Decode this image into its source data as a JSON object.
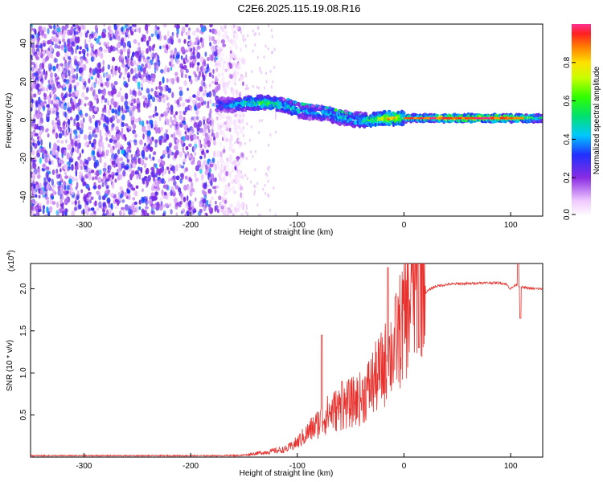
{
  "title": "C2E6.2025.115.19.08.R16",
  "chart_data": [
    {
      "type": "heatmap",
      "xlabel": "Height of straight line (km)",
      "ylabel": "Frequency (Hz)",
      "xlim": [
        -350,
        130
      ],
      "ylim": [
        -50,
        50
      ],
      "x_ticks": [
        -300,
        -200,
        -100,
        0,
        100
      ],
      "y_ticks": [
        -40,
        -20,
        0,
        20,
        40
      ],
      "colorbar": {
        "label": "Normalized spectral amplitude",
        "range": [
          0,
          1
        ],
        "ticks": [
          0.0,
          0.2,
          0.4,
          0.6,
          0.8
        ],
        "tick_labels": [
          "0.0",
          "0.2",
          "0.4",
          "0.6",
          "0.8"
        ]
      },
      "noise_region": {
        "x_range": [
          -350,
          -160
        ],
        "amplitude": 0.15
      },
      "signal_track": {
        "x": [
          -175,
          -160,
          -145,
          -130,
          -115,
          -100,
          -85,
          -70,
          -55,
          -42,
          -30,
          -15,
          0,
          15,
          40,
          70,
          100,
          130
        ],
        "frequency": [
          8,
          8,
          9,
          9,
          8,
          5,
          4,
          3,
          1,
          0,
          0,
          1,
          1,
          1,
          1,
          1,
          1,
          1
        ],
        "amplitude": [
          0.35,
          0.4,
          0.55,
          0.6,
          0.55,
          0.45,
          0.4,
          0.45,
          0.5,
          0.5,
          0.6,
          0.85,
          0.7,
          0.6,
          0.8,
          0.85,
          0.85,
          0.5
        ]
      }
    },
    {
      "type": "line",
      "xlabel": "Height of straight line (km)",
      "ylabel": "SNR (10 * v/v)",
      "y_scale_label": "(x10",
      "y_scale_exponent": "4",
      "y_scale_suffix": ")",
      "xlim": [
        -350,
        130
      ],
      "ylim": [
        0,
        2.3
      ],
      "x_ticks": [
        -300,
        -200,
        -100,
        0,
        100
      ],
      "y_ticks": [
        0.5,
        1.0,
        1.5,
        2.0
      ],
      "y_tick_labels": [
        "0.5",
        "1.0",
        "1.5",
        "2.0"
      ],
      "color": "#e8302c",
      "series": [
        {
          "x": [
            -350,
            -300,
            -250,
            -200,
            -170,
            -150,
            -130,
            -110,
            -100,
            -90,
            -80,
            -70,
            -60,
            -50,
            -40,
            -30,
            -20,
            -10,
            0,
            5,
            10,
            15,
            20,
            25,
            30,
            40,
            50,
            60,
            70,
            80,
            90,
            95,
            100,
            105,
            110,
            120,
            130
          ],
          "values": [
            0.01,
            0.01,
            0.01,
            0.01,
            0.01,
            0.02,
            0.05,
            0.08,
            0.15,
            0.25,
            0.35,
            0.45,
            0.5,
            0.55,
            0.6,
            0.75,
            0.9,
            1.1,
            1.4,
            1.55,
            1.7,
            1.85,
            1.95,
            2.0,
            2.03,
            2.05,
            2.06,
            2.06,
            2.07,
            2.07,
            2.07,
            2.06,
            2.0,
            2.05,
            2.02,
            2.0,
            2.0
          ]
        }
      ],
      "spikes": [
        {
          "x": -77,
          "value": 1.45
        },
        {
          "x": -58,
          "value": 0.9
        },
        {
          "x": -15,
          "value": 2.25
        },
        {
          "x": -8,
          "value": 1.9
        },
        {
          "x": 8,
          "value": 2.3
        },
        {
          "x": 14,
          "value": 1.3
        },
        {
          "x": 107,
          "value": 2.3
        },
        {
          "x": 109,
          "value": 1.65
        }
      ]
    }
  ]
}
